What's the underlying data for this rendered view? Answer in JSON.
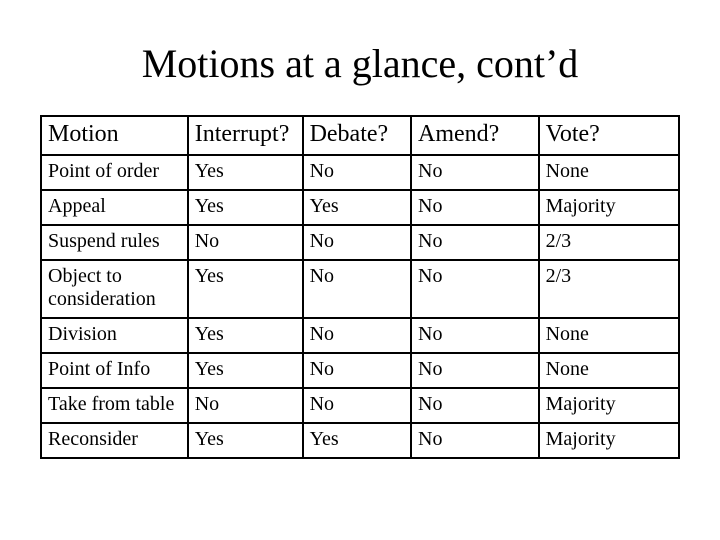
{
  "title": "Motions at a glance, cont’d",
  "table": {
    "columns": [
      "Motion",
      "Interrupt?",
      "Debate?",
      "Amend?",
      "Vote?"
    ],
    "rows": [
      [
        "Point of order",
        "Yes",
        "No",
        "No",
        "None"
      ],
      [
        "Appeal",
        "Yes",
        "Yes",
        "No",
        "Majority"
      ],
      [
        "Suspend rules",
        "No",
        "No",
        "No",
        "2/3"
      ],
      [
        "Object to consideration",
        "Yes",
        "No",
        "No",
        "2/3"
      ],
      [
        "Division",
        "Yes",
        "No",
        "No",
        "None"
      ],
      [
        "Point of Info",
        "Yes",
        "No",
        "No",
        "None"
      ],
      [
        "Take from table",
        "No",
        "No",
        "No",
        "Majority"
      ],
      [
        "Reconsider",
        "Yes",
        "Yes",
        "No",
        "Majority"
      ]
    ],
    "border_color": "#000000",
    "background_color": "#ffffff",
    "header_fontsize": 24,
    "cell_fontsize": 20,
    "column_widths_pct": [
      23,
      18,
      17,
      20,
      22
    ]
  },
  "title_fontsize": 40
}
